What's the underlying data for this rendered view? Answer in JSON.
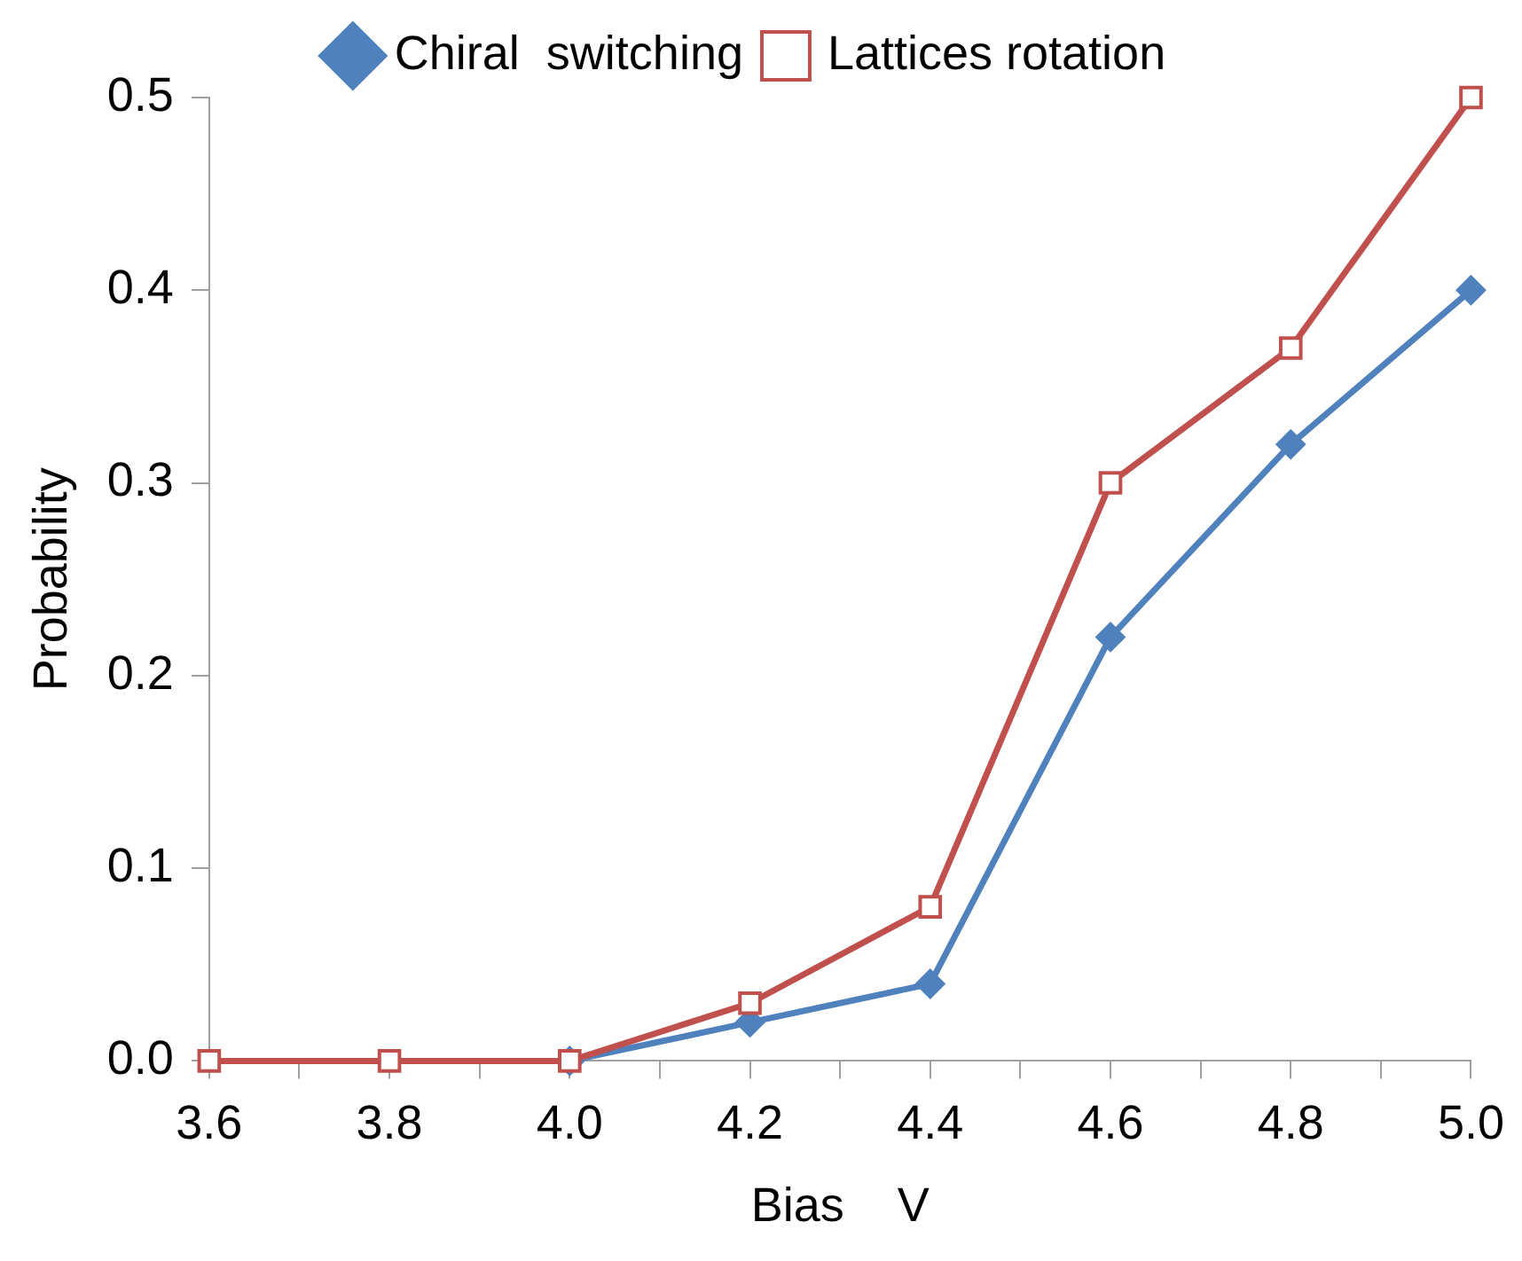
{
  "chart_data": {
    "type": "line",
    "xlabel": "Bias    V",
    "ylabel": "Probability",
    "x": [
      3.6,
      3.8,
      4.0,
      4.2,
      4.4,
      4.6,
      4.8,
      5.0
    ],
    "series": [
      {
        "name": "Chiral  switching",
        "color": "#4f81bd",
        "marker": "diamond",
        "values": [
          null,
          null,
          0,
          0.02,
          0.04,
          0.22,
          0.32,
          0.4
        ]
      },
      {
        "name": "Lattices rotation",
        "color": "#c0504d",
        "marker": "square",
        "values": [
          0,
          0,
          0,
          0.03,
          0.08,
          0.3,
          0.37,
          0.5
        ]
      }
    ],
    "xlim": [
      3.6,
      5.0
    ],
    "xticks": [
      3.6,
      {
        "value": 3.7,
        "label": null
      },
      3.8,
      {
        "value": 3.9,
        "label": null
      },
      {
        "value": 4.0,
        "label": "4.0"
      },
      {
        "value": 4.1,
        "label": null
      },
      4.2,
      {
        "value": 4.3,
        "label": null
      },
      4.4,
      {
        "value": 4.5,
        "label": null
      },
      4.6,
      {
        "value": 4.7,
        "label": null
      },
      4.8,
      {
        "value": 4.9,
        "label": null
      },
      {
        "value": 5.0,
        "label": "5.0"
      }
    ],
    "ylim": [
      0,
      0.5
    ],
    "yticks": [
      {
        "value": 0,
        "label": "0.0"
      },
      0.1,
      0.2,
      0.3,
      0.4,
      0.5
    ],
    "grid": false,
    "legend": "top",
    "line_style": "solid"
  }
}
